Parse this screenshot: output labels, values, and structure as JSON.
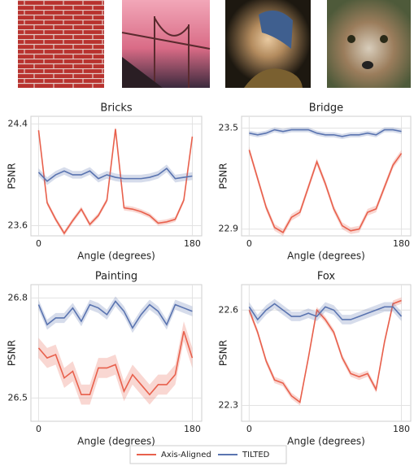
{
  "chart_data": [
    {
      "type": "line",
      "title": "Bricks",
      "xlabel": "Angle (degrees)",
      "ylabel": "PSNR",
      "x": [
        0,
        10,
        20,
        30,
        40,
        50,
        60,
        70,
        80,
        90,
        100,
        110,
        120,
        130,
        140,
        150,
        160,
        170,
        180
      ],
      "series": [
        {
          "name": "Axis-Aligned",
          "color": "#e8604c",
          "band": 0.02,
          "values": [
            24.35,
            23.78,
            23.65,
            23.54,
            23.64,
            23.73,
            23.61,
            23.68,
            23.8,
            24.36,
            23.74,
            23.73,
            23.71,
            23.68,
            23.62,
            23.63,
            23.65,
            23.8,
            24.3
          ]
        },
        {
          "name": "TILTED",
          "color": "#5a74b0",
          "band": 0.03,
          "values": [
            24.02,
            23.95,
            24.0,
            24.03,
            24.0,
            24.0,
            24.03,
            23.97,
            24.0,
            23.98,
            23.97,
            23.97,
            23.97,
            23.98,
            24.0,
            24.05,
            23.97,
            23.98,
            23.99
          ]
        }
      ],
      "xlim": [
        -9,
        191
      ],
      "ylim": [
        23.52,
        24.46
      ],
      "xticks": [
        0,
        180
      ],
      "yticks": [
        23.6,
        24.4
      ],
      "grid": true
    },
    {
      "type": "line",
      "title": "Bridge",
      "xlabel": "Angle (degrees)",
      "ylabel": "PSNR",
      "x": [
        0,
        10,
        20,
        30,
        40,
        50,
        60,
        70,
        80,
        90,
        100,
        110,
        120,
        130,
        140,
        150,
        160,
        170,
        180
      ],
      "series": [
        {
          "name": "Axis-Aligned",
          "color": "#e8604c",
          "band": 0.02,
          "values": [
            23.37,
            23.2,
            23.03,
            22.91,
            22.88,
            22.97,
            23.0,
            23.15,
            23.3,
            23.17,
            23.02,
            22.92,
            22.89,
            22.9,
            23.0,
            23.02,
            23.15,
            23.28,
            23.35
          ]
        },
        {
          "name": "TILTED",
          "color": "#5a74b0",
          "band": 0.015,
          "values": [
            23.47,
            23.46,
            23.47,
            23.49,
            23.48,
            23.49,
            23.49,
            23.49,
            23.47,
            23.46,
            23.46,
            23.45,
            23.46,
            23.46,
            23.47,
            23.46,
            23.49,
            23.49,
            23.48
          ]
        }
      ],
      "xlim": [
        -9,
        191
      ],
      "ylim": [
        22.86,
        23.57
      ],
      "xticks": [
        0,
        180
      ],
      "yticks": [
        22.9,
        23.5
      ],
      "grid": true
    },
    {
      "type": "line",
      "title": "Painting",
      "xlabel": "Angle (degrees)",
      "ylabel": "PSNR",
      "x": [
        0,
        10,
        20,
        30,
        40,
        50,
        60,
        70,
        80,
        90,
        100,
        110,
        120,
        130,
        140,
        150,
        160,
        170,
        180
      ],
      "series": [
        {
          "name": "Axis-Aligned",
          "color": "#e8604c",
          "band": 0.03,
          "values": [
            26.65,
            26.62,
            26.63,
            26.56,
            26.58,
            26.51,
            26.51,
            26.59,
            26.59,
            26.6,
            26.52,
            26.57,
            26.54,
            26.51,
            26.54,
            26.54,
            26.57,
            26.7,
            26.62
          ]
        },
        {
          "name": "TILTED",
          "color": "#5a74b0",
          "band": 0.015,
          "values": [
            26.78,
            26.72,
            26.74,
            26.74,
            26.77,
            26.73,
            26.78,
            26.77,
            26.75,
            26.79,
            26.76,
            26.71,
            26.75,
            26.78,
            26.76,
            26.72,
            26.78,
            26.77,
            26.76
          ]
        }
      ],
      "xlim": [
        -9,
        191
      ],
      "ylim": [
        26.43,
        26.84
      ],
      "xticks": [
        0,
        180
      ],
      "yticks": [
        26.5,
        26.8
      ],
      "grid": true
    },
    {
      "type": "line",
      "title": "Fox",
      "xlabel": "Angle (degrees)",
      "ylabel": "PSNR",
      "x": [
        0,
        10,
        20,
        30,
        40,
        50,
        60,
        70,
        80,
        90,
        100,
        110,
        120,
        130,
        140,
        150,
        160,
        170,
        180
      ],
      "series": [
        {
          "name": "Axis-Aligned",
          "color": "#e8604c",
          "band": 0.01,
          "values": [
            22.6,
            22.53,
            22.44,
            22.38,
            22.37,
            22.33,
            22.31,
            22.45,
            22.6,
            22.57,
            22.53,
            22.45,
            22.4,
            22.39,
            22.4,
            22.35,
            22.5,
            22.62,
            22.63
          ]
        },
        {
          "name": "TILTED",
          "color": "#5a74b0",
          "band": 0.015,
          "values": [
            22.61,
            22.57,
            22.6,
            22.62,
            22.6,
            22.58,
            22.58,
            22.59,
            22.58,
            22.61,
            22.6,
            22.57,
            22.57,
            22.58,
            22.59,
            22.6,
            22.61,
            22.61,
            22.58
          ]
        }
      ],
      "xlim": [
        -9,
        191
      ],
      "ylim": [
        22.25,
        22.68
      ],
      "xticks": [
        0,
        180
      ],
      "yticks": [
        22.3,
        22.6
      ],
      "grid": true
    }
  ]
}
